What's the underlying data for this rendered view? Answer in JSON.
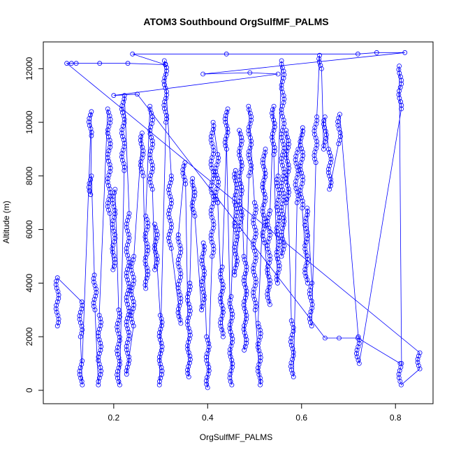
{
  "chart_data": {
    "type": "scatter",
    "title": "ATOM3 Southbound OrgSulfMF_PALMS",
    "xlabel": "OrgSulfMF_PALMS",
    "ylabel": "Altitude (m)",
    "xlim": [
      0.05,
      0.88
    ],
    "ylim": [
      -500,
      13000
    ],
    "xticks": [
      "0.2",
      "0.4",
      "0.6",
      "0.8"
    ],
    "xtick_values": [
      0.2,
      0.4,
      0.6,
      0.8
    ],
    "yticks": [
      "0",
      "2000",
      "4000",
      "6000",
      "8000",
      "10000",
      "12000"
    ],
    "ytick_values": [
      0,
      2000,
      4000,
      6000,
      8000,
      10000,
      12000
    ],
    "color": "#0000ff",
    "marker": "open-circle",
    "connected": true,
    "note_profiles_format": "[x, altitude_min, altitude_max] approximate vertical profiles",
    "profiles": [
      [
        0.08,
        2400,
        4200
      ],
      [
        0.13,
        2000,
        3300
      ],
      [
        0.13,
        200,
        1100
      ],
      [
        0.15,
        9500,
        10400
      ],
      [
        0.15,
        7300,
        8000
      ],
      [
        0.16,
        3000,
        4300
      ],
      [
        0.17,
        200,
        2800
      ],
      [
        0.19,
        6600,
        10500
      ],
      [
        0.2,
        4500,
        7500
      ],
      [
        0.21,
        200,
        3000
      ],
      [
        0.22,
        8200,
        11000
      ],
      [
        0.23,
        600,
        6600
      ],
      [
        0.24,
        2400,
        5000
      ],
      [
        0.26,
        8000,
        9600
      ],
      [
        0.27,
        3800,
        6500
      ],
      [
        0.28,
        7500,
        10600
      ],
      [
        0.29,
        4500,
        6200
      ],
      [
        0.3,
        200,
        2800
      ],
      [
        0.31,
        10000,
        12300
      ],
      [
        0.32,
        5300,
        8000
      ],
      [
        0.34,
        2500,
        5800
      ],
      [
        0.35,
        7700,
        8500
      ],
      [
        0.36,
        500,
        4000
      ],
      [
        0.37,
        6500,
        7900
      ],
      [
        0.39,
        3000,
        5500
      ],
      [
        0.4,
        100,
        2000
      ],
      [
        0.41,
        5000,
        10000
      ],
      [
        0.42,
        7000,
        8800
      ],
      [
        0.43,
        2000,
        4600
      ],
      [
        0.44,
        9000,
        10500
      ],
      [
        0.45,
        200,
        3500
      ],
      [
        0.46,
        4300,
        8200
      ],
      [
        0.47,
        6000,
        9700
      ],
      [
        0.48,
        1500,
        5000
      ],
      [
        0.49,
        8000,
        10600
      ],
      [
        0.5,
        3000,
        7000
      ],
      [
        0.51,
        200,
        2500
      ],
      [
        0.52,
        5500,
        9000
      ],
      [
        0.53,
        3200,
        6700
      ],
      [
        0.54,
        8800,
        10600
      ],
      [
        0.55,
        4000,
        8000
      ],
      [
        0.56,
        5000,
        12300
      ],
      [
        0.57,
        7000,
        9700
      ],
      [
        0.58,
        500,
        2600
      ],
      [
        0.59,
        7000,
        9000
      ],
      [
        0.6,
        6800,
        9800
      ],
      [
        0.61,
        4000,
        6800
      ],
      [
        0.62,
        2400,
        4000
      ],
      [
        0.63,
        8500,
        10200
      ],
      [
        0.64,
        12000,
        12500
      ],
      [
        0.65,
        9000,
        10200
      ],
      [
        0.66,
        7500,
        9000
      ],
      [
        0.68,
        9200,
        10300
      ],
      [
        0.72,
        1000,
        2000
      ],
      [
        0.81,
        10500,
        12100
      ],
      [
        0.81,
        200,
        1000
      ],
      [
        0.85,
        800,
        1400
      ]
    ],
    "extra_points": [
      [
        0.1,
        12200
      ],
      [
        0.11,
        12200
      ],
      [
        0.12,
        12200
      ],
      [
        0.17,
        12200
      ],
      [
        0.23,
        12200
      ],
      [
        0.31,
        12150
      ],
      [
        0.24,
        12550
      ],
      [
        0.44,
        12550
      ],
      [
        0.72,
        12550
      ],
      [
        0.76,
        12600
      ],
      [
        0.82,
        12600
      ],
      [
        0.39,
        11800
      ],
      [
        0.49,
        11850
      ],
      [
        0.55,
        11800
      ],
      [
        0.2,
        11000
      ],
      [
        0.25,
        11050
      ],
      [
        0.65,
        1950
      ],
      [
        0.68,
        1950
      ],
      [
        0.72,
        1950
      ],
      [
        0.81,
        1000
      ]
    ]
  }
}
